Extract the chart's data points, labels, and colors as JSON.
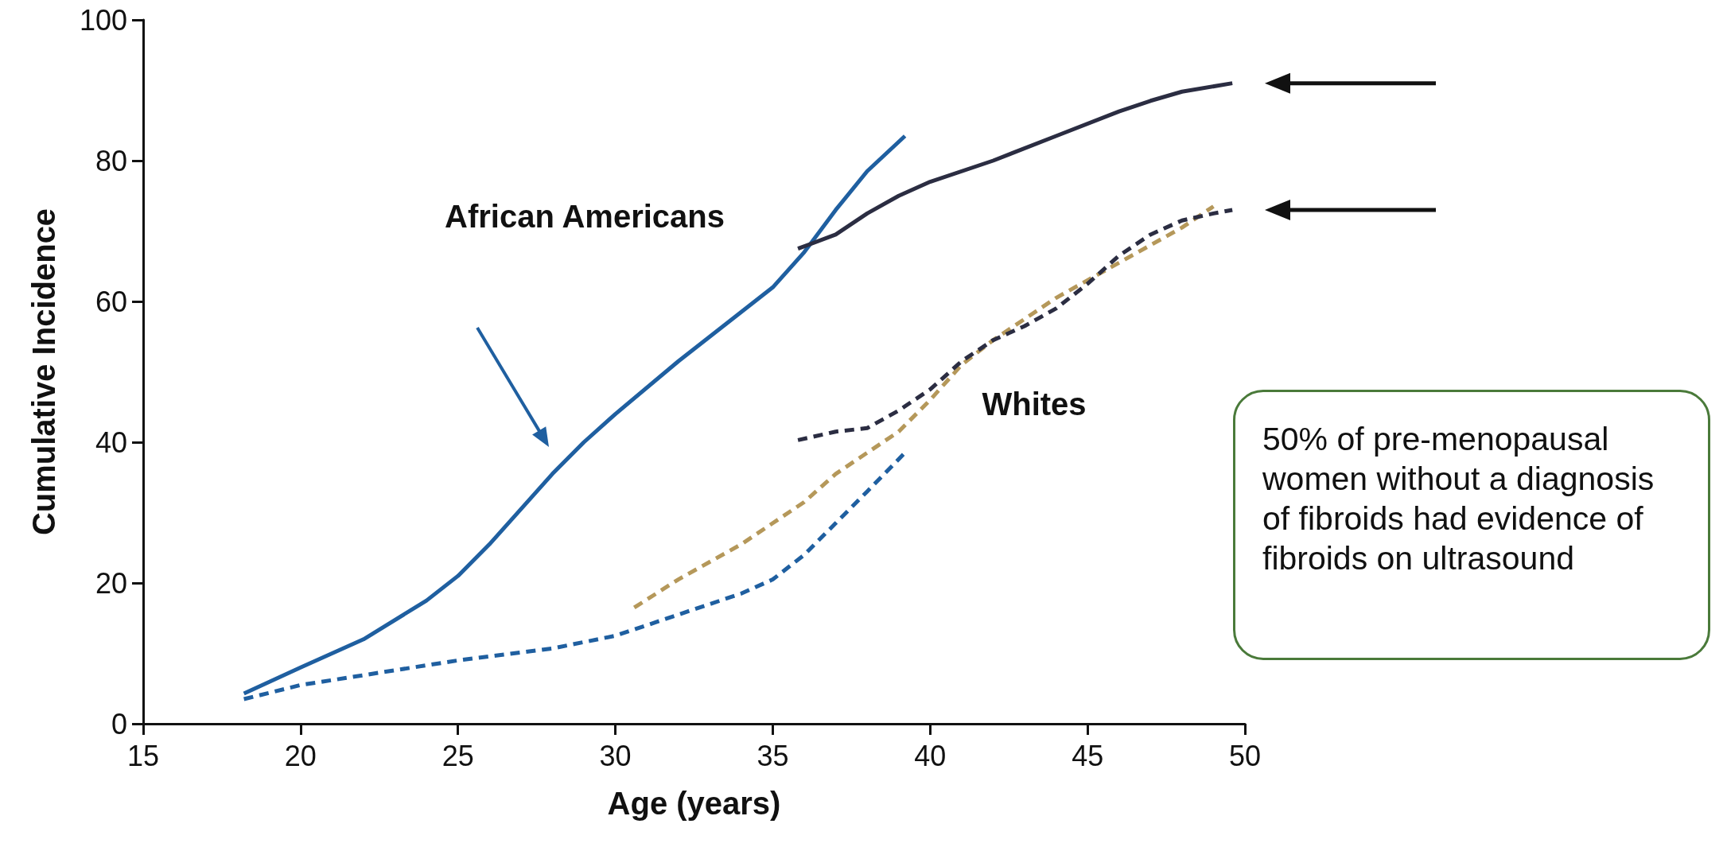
{
  "chart_data": {
    "type": "line",
    "xlabel": "Age (years)",
    "ylabel": "Cumulative Incidence",
    "xlim": [
      15,
      50
    ],
    "xticks": [
      15,
      20,
      25,
      30,
      35,
      40,
      45,
      50
    ],
    "ylim": [
      0,
      100
    ],
    "yticks": [
      0,
      20,
      40,
      60,
      80,
      100
    ],
    "marker": "none",
    "series": [
      {
        "color": "#1f5fa0",
        "line_style": "solid",
        "x": [
          18.2,
          20,
          22,
          24,
          25,
          26,
          27,
          28,
          29,
          30,
          32,
          34,
          35,
          36,
          37,
          38,
          39.2
        ],
        "values": [
          4.3,
          8,
          12,
          17.5,
          21,
          25.5,
          30.5,
          35.5,
          40,
          44,
          51.5,
          58.5,
          62,
          67,
          73,
          78.5,
          83.5
        ]
      },
      {
        "color": "#2b2d42",
        "line_style": "solid",
        "x": [
          35.8,
          37,
          38,
          39,
          40,
          42,
          44,
          46,
          47,
          48,
          49.6
        ],
        "values": [
          67.5,
          69.5,
          72.5,
          75,
          77,
          80,
          83.5,
          87,
          88.5,
          89.8,
          91
        ]
      },
      {
        "color": "#1f5fa0",
        "line_style": "dashed",
        "x": [
          18.2,
          20,
          25,
          28,
          30,
          32,
          34,
          35,
          36,
          37,
          38,
          39.2
        ],
        "values": [
          3.5,
          5.5,
          9,
          10.7,
          12.5,
          15.5,
          18.5,
          20.5,
          24,
          28.5,
          33,
          38.5
        ]
      },
      {
        "color": "#b5985a",
        "line_style": "dashed",
        "x": [
          30.6,
          32,
          34,
          35,
          36,
          37,
          38,
          39,
          40,
          41,
          42,
          44,
          46,
          48,
          49
        ],
        "values": [
          16.5,
          20.5,
          25.5,
          28.5,
          31.5,
          35.5,
          38.5,
          41.5,
          46,
          51,
          54.5,
          60.5,
          65.5,
          70.5,
          73.5
        ]
      },
      {
        "color": "#2b2d42",
        "line_style": "dashed",
        "x": [
          35.8,
          37,
          38,
          39,
          40,
          41,
          42,
          43,
          44,
          45,
          46,
          47,
          48,
          49,
          49.6
        ],
        "values": [
          40.3,
          41.5,
          42,
          44.5,
          47.5,
          51.5,
          54.5,
          56.5,
          59,
          62.5,
          66.5,
          69.5,
          71.5,
          72.5,
          73
        ]
      }
    ],
    "annotations": [
      "African Americans",
      "Whites",
      "50% of pre-menopausal women without a diagnosis of fibroids had evidence of fibroids on ultrasound"
    ]
  }
}
